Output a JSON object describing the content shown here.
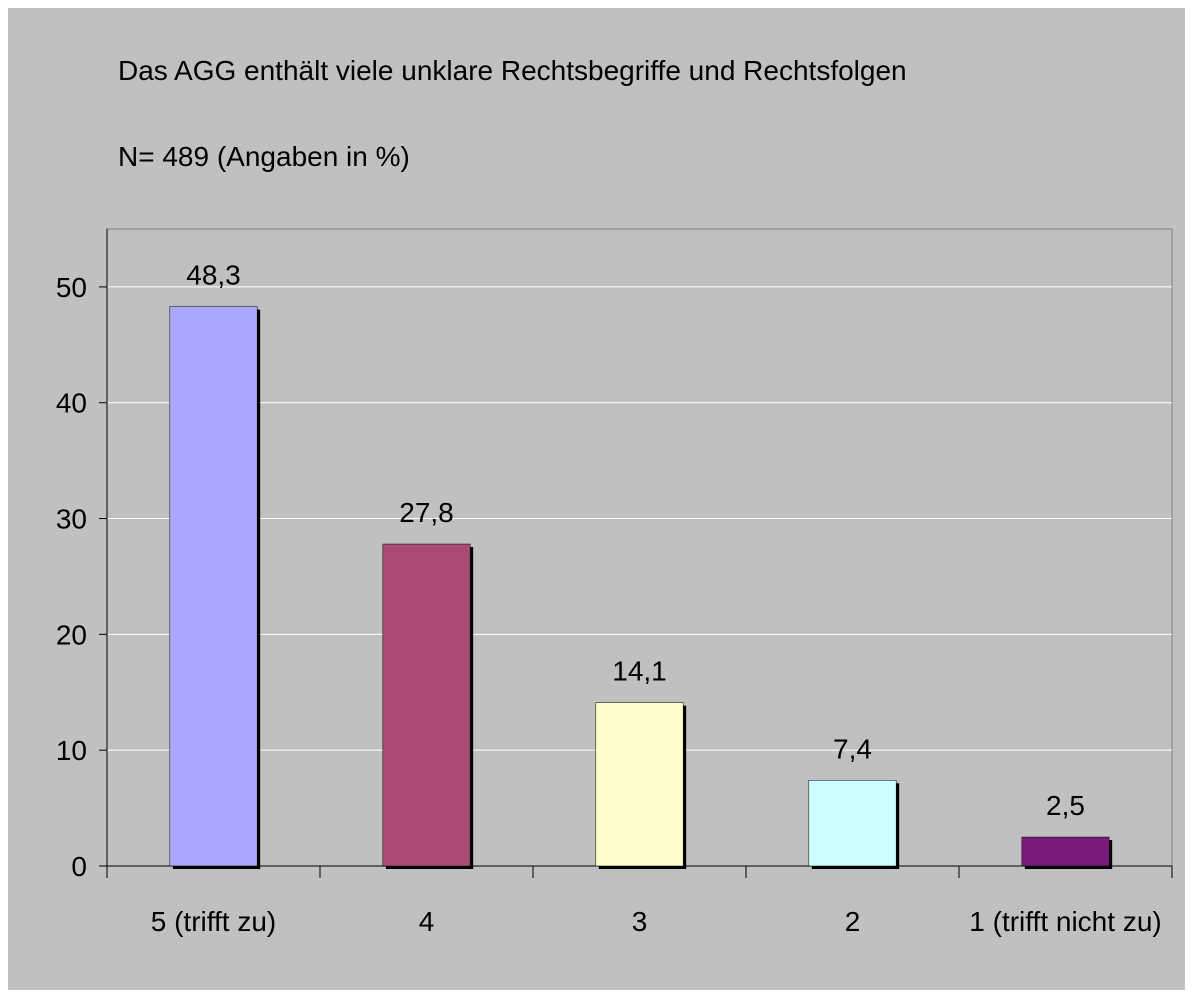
{
  "chart_data": {
    "type": "bar",
    "title": "Das AGG enthält viele unklare Rechtsbegriffe und Rechtsfolgen",
    "subtitle": "N= 489 (Angaben in %)",
    "categories": [
      "5 (trifft zu)",
      "4",
      "3",
      "2",
      "1 (trifft nicht zu)"
    ],
    "values": [
      48.3,
      27.8,
      14.1,
      7.4,
      2.5
    ],
    "value_labels": [
      "48,3",
      "27,8",
      "14,1",
      "7,4",
      "2,5"
    ],
    "colors": [
      "#a8a8ff",
      "#a94a78",
      "#ffffcc",
      "#ccffff",
      "#7a1a7a"
    ],
    "ylim": [
      0,
      55
    ],
    "yticks": [
      0,
      10,
      20,
      30,
      40,
      50
    ],
    "grid": true
  }
}
